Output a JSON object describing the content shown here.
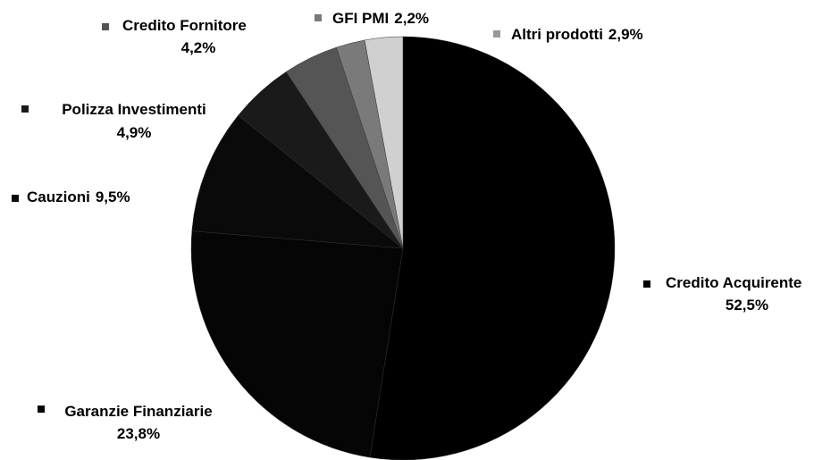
{
  "chart_data": {
    "type": "pie",
    "categories": [
      "Credito Acquirente",
      "Garanzie Finanziarie",
      "Cauzioni",
      "Polizza Investimenti",
      "Credito Fornitore",
      "GFI PMI",
      "Altri prodotti"
    ],
    "values": [
      52.5,
      23.8,
      9.5,
      4.9,
      4.2,
      2.2,
      2.9
    ],
    "value_labels": [
      "52,5%",
      "23,8%",
      "9,5%",
      "4,9%",
      "4,2%",
      "2,2%",
      "2,9%"
    ],
    "colors": [
      "#000000",
      "#050505",
      "#0a0a0a",
      "#1a1a1a",
      "#555555",
      "#7a7a7a",
      "#d0d0d0"
    ]
  }
}
